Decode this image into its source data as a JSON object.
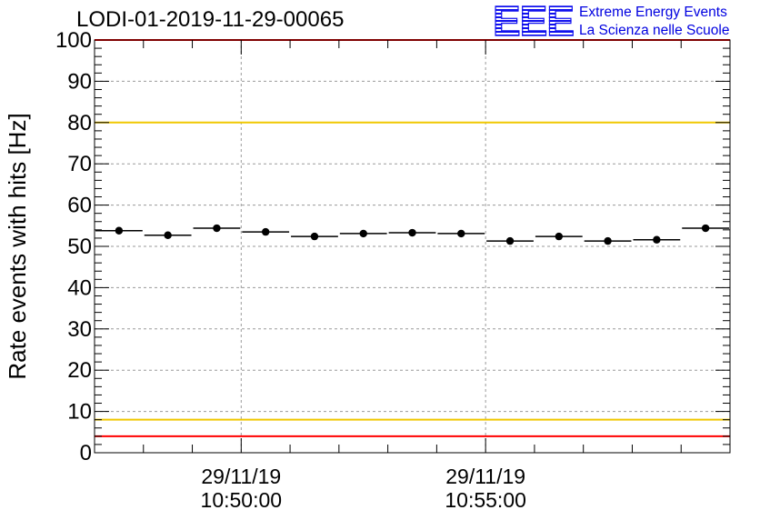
{
  "header": {
    "title": "LODI-01-2019-11-29-00065"
  },
  "logo": {
    "mark": "EEE",
    "line1": "Extreme Energy Events",
    "line2": "La Scienza nelle Scuole",
    "color": "#0000e0"
  },
  "chart_data": {
    "type": "scatter",
    "title": "LODI-01-2019-11-29-00065",
    "ylabel": "Rate events with hits [Hz]",
    "xlabel": "",
    "ylim": [
      0,
      100
    ],
    "y_ticks": [
      0,
      10,
      20,
      30,
      40,
      50,
      60,
      70,
      80,
      90,
      100
    ],
    "xlim": [
      "29/11/19 10:47:00",
      "29/11/19 11:00:00"
    ],
    "x_ticks": [
      {
        "date": "29/11/19",
        "time": "10:50:00"
      },
      {
        "date": "29/11/19",
        "time": "10:55:00"
      }
    ],
    "grid": true,
    "bin_width_s": 60,
    "series": [
      {
        "x": [
          "10:47:30",
          "10:48:30",
          "10:49:30",
          "10:50:30",
          "10:51:30",
          "10:52:30",
          "10:53:30",
          "10:54:30",
          "10:55:30",
          "10:56:30",
          "10:57:30",
          "10:58:30",
          "10:59:30"
        ],
        "values": [
          53.8,
          52.7,
          54.4,
          53.5,
          52.4,
          53.1,
          53.3,
          53.1,
          51.3,
          52.4,
          51.3,
          51.6,
          54.4
        ],
        "color": "#000000"
      }
    ],
    "reference_lines": [
      {
        "y": 80,
        "color": "#f0c800"
      },
      {
        "y": 8,
        "color": "#f0c800"
      },
      {
        "y": 100,
        "color": "#ff0000"
      },
      {
        "y": 4,
        "color": "#ff0000"
      }
    ]
  }
}
